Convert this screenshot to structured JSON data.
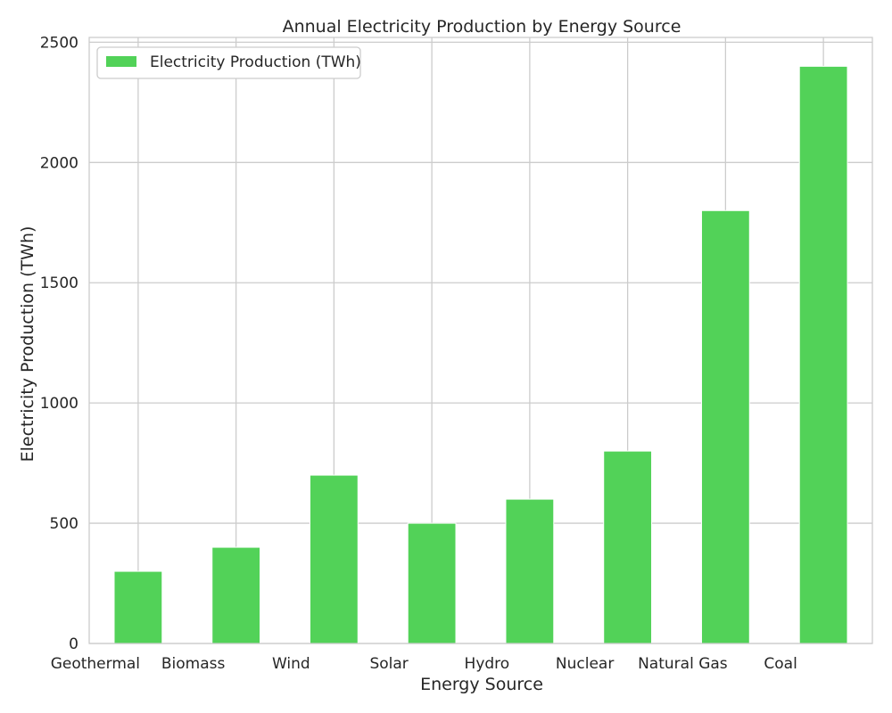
{
  "chart_data": {
    "type": "bar",
    "title": "Annual Electricity Production by Energy Source",
    "xlabel": "Energy Source",
    "ylabel": "Electricity Production (TWh)",
    "categories": [
      "Geothermal",
      "Biomass",
      "Wind",
      "Solar",
      "Hydro",
      "Nuclear",
      "Natural Gas",
      "Coal"
    ],
    "series": [
      {
        "name": "Electricity Production (TWh)",
        "values": [
          300,
          400,
          700,
          500,
          600,
          800,
          1800,
          2400
        ],
        "color": "#52d258"
      }
    ],
    "ylim": [
      0,
      2520
    ],
    "yticks": [
      0,
      500,
      1000,
      1500,
      2000,
      2500
    ],
    "grid": true,
    "legend": "top-left"
  }
}
